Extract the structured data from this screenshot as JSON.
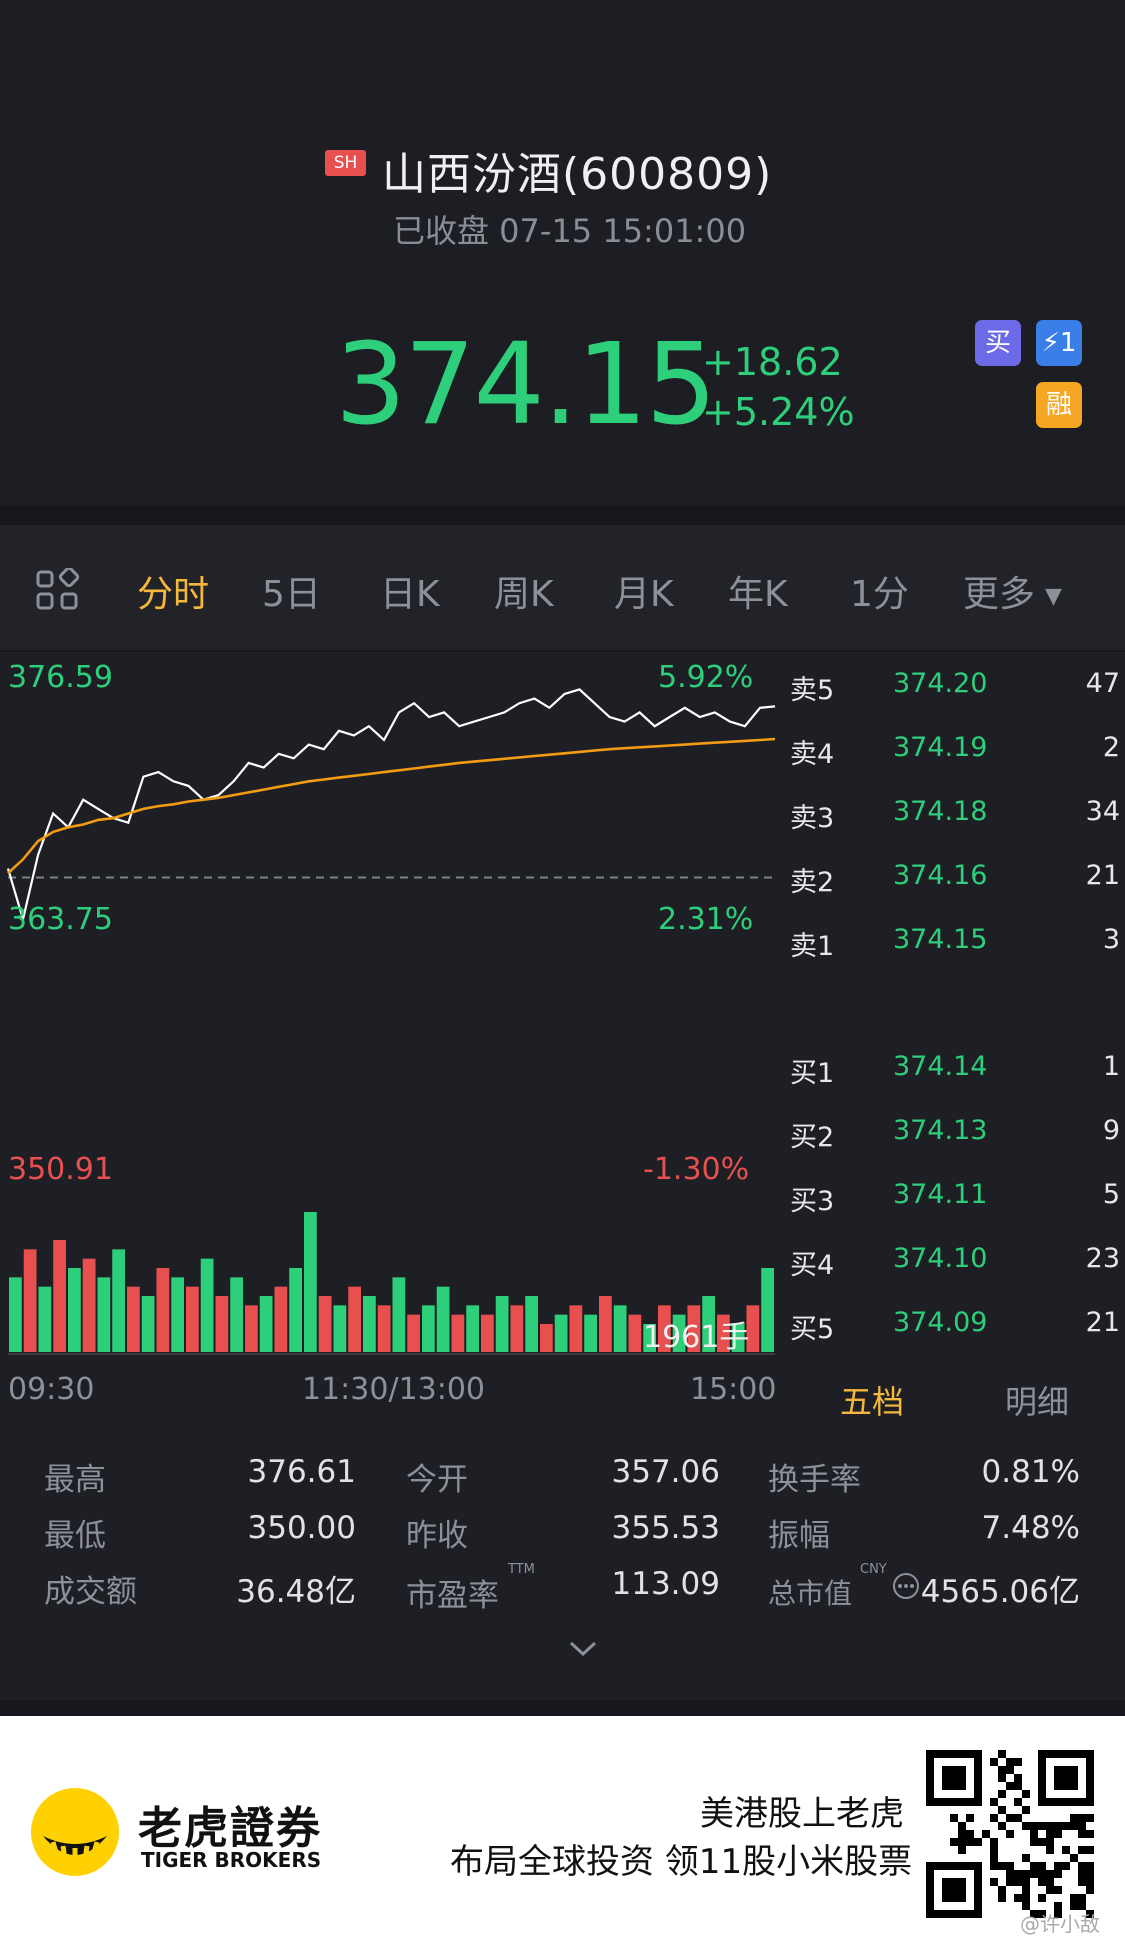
{
  "header": {
    "exchange_badge": "SH",
    "stock_name": "山西汾酒(600809)",
    "status": "已收盘 07-15 15:01:00",
    "price": "374.15",
    "change_abs": "+18.62",
    "change_pct": "+5.24%",
    "icons": {
      "buy": "买",
      "flash": "⚡1",
      "margin": "融"
    },
    "up_color": "#2ecf7a",
    "down_color": "#e8504f",
    "accent_color": "#f5b83d"
  },
  "tabs": [
    "分时",
    "5日",
    "日K",
    "周K",
    "月K",
    "年K",
    "1分",
    "更多"
  ],
  "active_tab": "分时",
  "chart": {
    "max_price_label": "376.59",
    "mid_price_label": "363.75",
    "min_price_label": "350.91",
    "max_pct_label": "5.92%",
    "mid_pct_label": "2.31%",
    "min_pct_label": "-1.30%",
    "volume_label": "1961手",
    "time_labels": [
      "09:30",
      "11:30/13:00",
      "15:00"
    ]
  },
  "chart_data": {
    "type": "line",
    "title": "",
    "xlabel": "",
    "ylabel": "",
    "x_ticks": [
      "09:30",
      "11:30/13:00",
      "15:00"
    ],
    "ylim": [
      350.91,
      376.59
    ],
    "y_right_labels": [
      "5.92%",
      "2.31%",
      "-1.30%"
    ],
    "prev_close": 355.53,
    "series": [
      {
        "values": [
          356.5,
          351.0,
          358.0,
          362.5,
          361.0,
          364.0,
          363.0,
          362.0,
          361.5,
          366.5,
          367.0,
          366.0,
          365.5,
          364.0,
          364.5,
          366.0,
          368.0,
          367.5,
          369.0,
          368.5,
          370.0,
          369.5,
          371.5,
          371.0,
          372.0,
          370.5,
          373.5,
          374.5,
          373.0,
          373.5,
          372.0,
          372.5,
          373.0,
          373.5,
          374.5,
          375.0,
          374.0,
          375.5,
          376.0,
          374.5,
          373.0,
          372.5,
          373.5,
          372.0,
          373.0,
          374.0,
          373.0,
          373.5,
          372.5,
          372.0,
          374.0,
          374.15
        ]
      },
      {
        "values": [
          356.0,
          357.5,
          359.5,
          360.5,
          361.0,
          361.3,
          361.8,
          362.0,
          362.5,
          363.0,
          363.3,
          363.5,
          363.8,
          364.0,
          364.2,
          364.5,
          364.8,
          365.1,
          365.4,
          365.7,
          366.0,
          366.2,
          366.4,
          366.6,
          366.8,
          367.0,
          367.2,
          367.4,
          367.6,
          367.8,
          368.0,
          368.15,
          368.3,
          368.45,
          368.6,
          368.75,
          368.9,
          369.05,
          369.2,
          369.35,
          369.5,
          369.6,
          369.7,
          369.8,
          369.9,
          370.0,
          370.1,
          370.2,
          370.3,
          370.4,
          370.5,
          370.6
        ]
      }
    ],
    "volume": [
      8,
      11,
      7,
      12,
      9,
      10,
      8,
      11,
      7,
      6,
      9,
      8,
      7,
      10,
      6,
      8,
      5,
      6,
      7,
      9,
      15,
      6,
      5,
      7,
      6,
      5,
      8,
      4,
      5,
      7,
      4,
      5,
      4,
      6,
      5,
      6,
      3,
      4,
      5,
      4,
      6,
      5,
      4,
      3,
      5,
      4,
      5,
      6,
      4,
      3,
      5,
      9
    ],
    "volume_colors": [
      "up",
      "down",
      "up",
      "down",
      "up",
      "down",
      "up",
      "up",
      "down",
      "up",
      "down",
      "up",
      "down",
      "up",
      "down",
      "up",
      "down",
      "up",
      "down",
      "up",
      "up",
      "down",
      "up",
      "down",
      "up",
      "down",
      "up",
      "down",
      "up",
      "up",
      "down",
      "up",
      "down",
      "up",
      "down",
      "up",
      "down",
      "up",
      "down",
      "up",
      "down",
      "up",
      "down",
      "up",
      "down",
      "up",
      "down",
      "up",
      "down",
      "up",
      "down",
      "up"
    ]
  },
  "orderbook": {
    "asks": [
      {
        "label": "卖5",
        "price": "374.20",
        "vol": "47"
      },
      {
        "label": "卖4",
        "price": "374.19",
        "vol": "2"
      },
      {
        "label": "卖3",
        "price": "374.18",
        "vol": "34"
      },
      {
        "label": "卖2",
        "price": "374.16",
        "vol": "21"
      },
      {
        "label": "卖1",
        "price": "374.15",
        "vol": "3"
      }
    ],
    "bids": [
      {
        "label": "买1",
        "price": "374.14",
        "vol": "1"
      },
      {
        "label": "买2",
        "price": "374.13",
        "vol": "9"
      },
      {
        "label": "买3",
        "price": "374.11",
        "vol": "5"
      },
      {
        "label": "买4",
        "price": "374.10",
        "vol": "23"
      },
      {
        "label": "买5",
        "price": "374.09",
        "vol": "21"
      }
    ],
    "tab_five": "五档",
    "tab_detail": "明细"
  },
  "stats": {
    "high_label": "最高",
    "high": "376.61",
    "open_label": "今开",
    "open": "357.06",
    "turnover_label": "换手率",
    "turnover": "0.81%",
    "low_label": "最低",
    "low": "350.00",
    "prev_close_label": "昨收",
    "prev_close": "355.53",
    "amplitude_label": "振幅",
    "amplitude": "7.48%",
    "amount_label": "成交额",
    "amount": "36.48亿",
    "pe_label": "市盈率",
    "pe_sup": "TTM",
    "pe": "113.09",
    "mcap_label": "总市值",
    "mcap_sup": "CNY",
    "mcap": "4565.06亿"
  },
  "footer": {
    "brand_cn": "老虎證券",
    "brand_en": "TIGER BROKERS",
    "slogan1": "美港股上老虎",
    "slogan2": "布局全球投资 领11股小米股票",
    "watermark": "@许小敌"
  }
}
